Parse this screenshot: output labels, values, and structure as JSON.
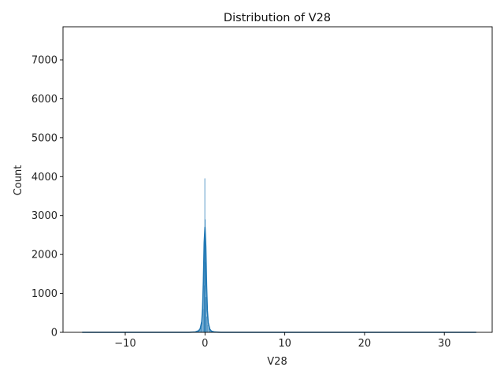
{
  "chart_data": {
    "type": "histogram",
    "title": "Distribution of V28",
    "xlabel": "V28",
    "ylabel": "Count",
    "xlim": [
      -17.8,
      36.0
    ],
    "ylim": [
      0,
      7850
    ],
    "xticks": [
      -10,
      0,
      10,
      20,
      30
    ],
    "xtick_labels": [
      "−10",
      "0",
      "10",
      "20",
      "30"
    ],
    "yticks": [
      0,
      1000,
      2000,
      3000,
      4000,
      5000,
      6000,
      7000
    ],
    "ytick_labels": [
      "0",
      "1000",
      "2000",
      "3000",
      "4000",
      "5000",
      "6000",
      "7000"
    ],
    "grid": false,
    "colors": {
      "bar": "#1f77b4",
      "bar_fill_opacity": 0.5,
      "kde": "#1f77b4",
      "axis": "#000000"
    },
    "bins": [
      {
        "x0": -0.9,
        "x1": -0.76,
        "count": 30
      },
      {
        "x0": -0.76,
        "x1": -0.62,
        "count": 60
      },
      {
        "x0": -0.62,
        "x1": -0.48,
        "count": 120
      },
      {
        "x0": -0.48,
        "x1": -0.34,
        "count": 250
      },
      {
        "x0": -0.34,
        "x1": -0.2,
        "count": 600
      },
      {
        "x0": -0.2,
        "x1": -0.1,
        "count": 1200
      },
      {
        "x0": -0.1,
        "x1": -0.04,
        "count": 2500
      },
      {
        "x0": -0.04,
        "x1": 0.0,
        "count": 3950
      },
      {
        "x0": 0.0,
        "x1": 0.04,
        "count": 2900
      },
      {
        "x0": 0.04,
        "x1": 0.1,
        "count": 1800
      },
      {
        "x0": 0.1,
        "x1": 0.2,
        "count": 900
      },
      {
        "x0": 0.2,
        "x1": 0.34,
        "count": 400
      },
      {
        "x0": 0.34,
        "x1": 0.48,
        "count": 180
      },
      {
        "x0": 0.48,
        "x1": 0.62,
        "count": 80
      },
      {
        "x0": 0.62,
        "x1": 0.76,
        "count": 40
      },
      {
        "x0": 0.76,
        "x1": 0.9,
        "count": 20
      }
    ],
    "kde": {
      "x": [
        -15.4,
        -5.0,
        -2.0,
        -1.2,
        -0.8,
        -0.6,
        -0.4,
        -0.3,
        -0.2,
        -0.1,
        0.0,
        0.1,
        0.2,
        0.3,
        0.4,
        0.6,
        0.8,
        1.2,
        2.0,
        5.0,
        34.0
      ],
      "y": [
        0,
        0,
        0,
        10,
        40,
        90,
        280,
        600,
        1300,
        2300,
        2700,
        2200,
        1200,
        550,
        250,
        80,
        30,
        8,
        0,
        0,
        0
      ]
    }
  }
}
